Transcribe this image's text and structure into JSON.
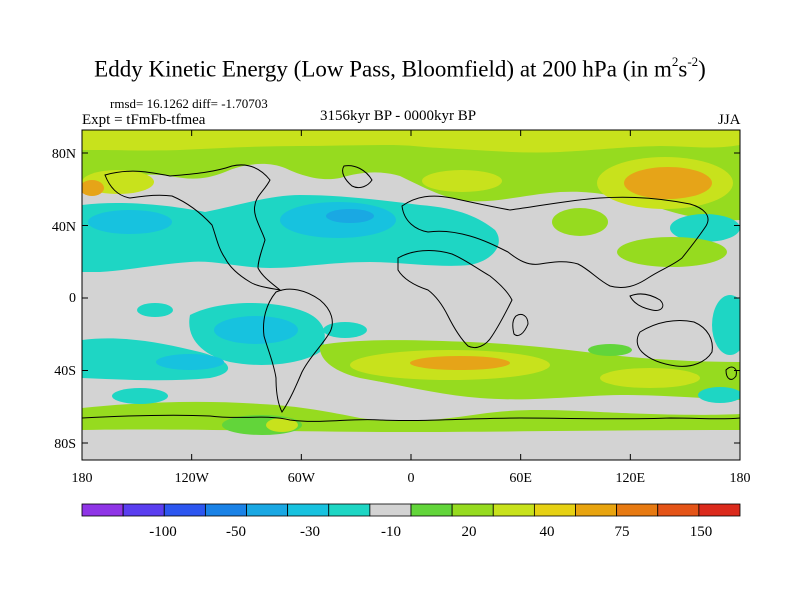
{
  "title_main": "Eddy Kinetic Energy (Low Pass, Bloomfield) at 200 hPa (in m",
  "title_exp1": "2",
  "title_mid": "s",
  "title_exp2": "-2",
  "title_end": ")",
  "rmsd_text": "rmsd= 16.1262 diff= -1.70703",
  "expt_text": "Expt = tFmFb-tfmea",
  "period_text": "3156kyr BP - 0000kyr BP",
  "season_text": "JJA",
  "x_ticks": [
    "180",
    "120W",
    "60W",
    "0",
    "60E",
    "120E",
    "180"
  ],
  "y_ticks": [
    "80N",
    "40N",
    "0",
    "40S",
    "80S"
  ],
  "colorbar": {
    "colors": [
      "#8f35e6",
      "#5a3ef0",
      "#2c56f0",
      "#1a82e6",
      "#1aa8e3",
      "#17c2df",
      "#1ed6c4",
      "#d3d3d3",
      "#62d53a",
      "#96db1f",
      "#c8e21c",
      "#e6d113",
      "#e8a40f",
      "#e77a12",
      "#e45417",
      "#db2a1c"
    ],
    "labels": [
      "-100",
      "-50",
      "-30",
      "-10",
      "20",
      "40",
      "75",
      "150"
    ]
  },
  "colors": {
    "neutral": "#d3d3d3",
    "light_green": "#96db1f",
    "green": "#62d53a",
    "yellow_green": "#c8e21c",
    "orange": "#e6a418",
    "cyan": "#1ed6c4",
    "light_blue": "#17c2df",
    "blue": "#1aa8e3"
  }
}
